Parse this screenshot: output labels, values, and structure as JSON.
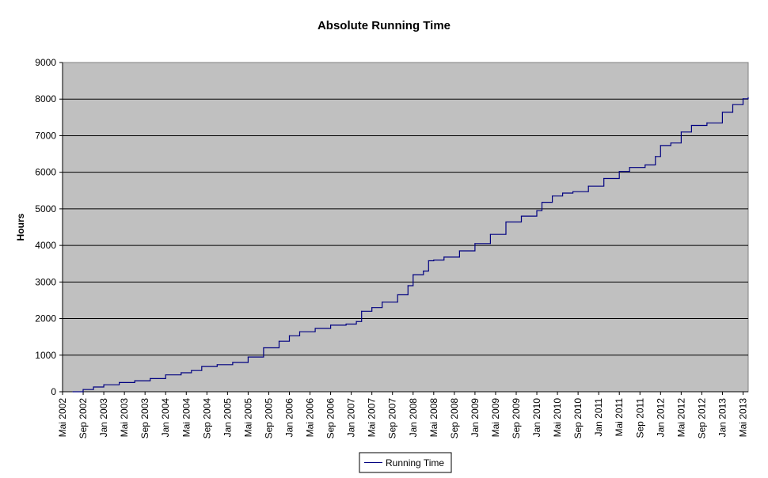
{
  "chart_data": {
    "type": "line",
    "title": "Absolute Running Time",
    "xlabel": "",
    "ylabel": "Hours",
    "ylim": [
      0,
      9000
    ],
    "yticks": [
      "0",
      "1000",
      "2000",
      "3000",
      "4000",
      "5000",
      "6000",
      "7000",
      "8000",
      "9000"
    ],
    "xlim": [
      "2002-05",
      "2013-06"
    ],
    "xticks": [
      "Mai 2002",
      "Sep 2002",
      "Jan 2003",
      "Mai 2003",
      "Sep 2003",
      "Jan 2004",
      "Mai 2004",
      "Sep 2004",
      "Jan 2005",
      "Mai 2005",
      "Sep 2005",
      "Jan 2006",
      "Mai 2006",
      "Sep 2006",
      "Jan 2007",
      "Mai 2007",
      "Sep 2007",
      "Jan 2008",
      "Mai 2008",
      "Sep 2008",
      "Jan 2009",
      "Mai 2009",
      "Sep 2009",
      "Jan 2010",
      "Mai 2010",
      "Sep 2010",
      "Jan 2011",
      "Mai 2011",
      "Sep 2011",
      "Jan 2012",
      "Mai 2012",
      "Sep 2012",
      "Jan 2013",
      "Mai 2013"
    ],
    "grid": "horizontal",
    "legend": "bottom",
    "plot_background": "#c0c0c0",
    "series": [
      {
        "name": "Running Time",
        "color": "#000080",
        "x": [
          "2002-07",
          "2002-09",
          "2002-11",
          "2003-01",
          "2003-04",
          "2003-07",
          "2003-10",
          "2004-01",
          "2004-04",
          "2004-06",
          "2004-08",
          "2004-11",
          "2005-02",
          "2005-05",
          "2005-08",
          "2005-11",
          "2006-01",
          "2006-03",
          "2006-06",
          "2006-09",
          "2006-12",
          "2007-02",
          "2007-03",
          "2007-05",
          "2007-07",
          "2007-10",
          "2007-12",
          "2008-01",
          "2008-03",
          "2008-04",
          "2008-05",
          "2008-07",
          "2008-10",
          "2009-01",
          "2009-04",
          "2009-07",
          "2009-10",
          "2010-01",
          "2010-02",
          "2010-04",
          "2010-06",
          "2010-08",
          "2010-11",
          "2011-02",
          "2011-05",
          "2011-07",
          "2011-10",
          "2011-12",
          "2012-01",
          "2012-03",
          "2012-05",
          "2012-07",
          "2012-10",
          "2013-01",
          "2013-03",
          "2013-05",
          "2013-06"
        ],
        "y": [
          0,
          60,
          130,
          190,
          250,
          300,
          360,
          460,
          520,
          580,
          690,
          740,
          800,
          950,
          1200,
          1380,
          1530,
          1640,
          1730,
          1820,
          1850,
          1920,
          2200,
          2300,
          2450,
          2650,
          2900,
          3200,
          3300,
          3580,
          3600,
          3680,
          3850,
          4050,
          4300,
          4640,
          4800,
          4950,
          5180,
          5350,
          5430,
          5470,
          5620,
          5830,
          6020,
          6130,
          6200,
          6430,
          6730,
          6800,
          7100,
          7280,
          7350,
          7640,
          7850,
          8010,
          8040
        ]
      }
    ]
  }
}
